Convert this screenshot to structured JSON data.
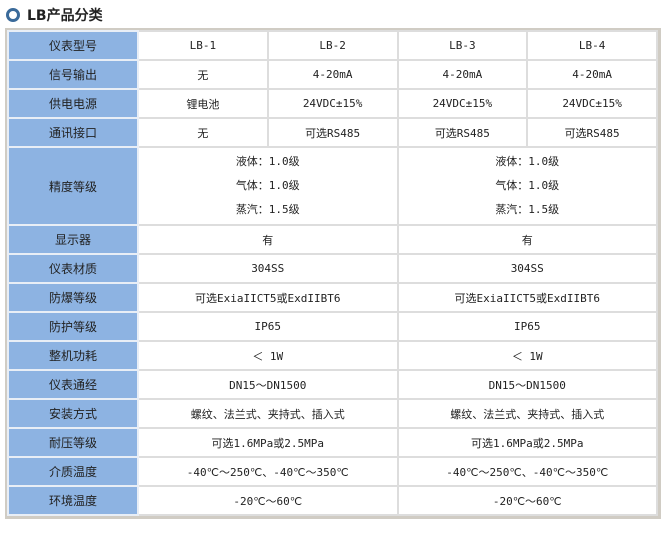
{
  "title": "LB产品分类",
  "rows": [
    {
      "label": "仪表型号",
      "cells": [
        "LB-1",
        "LB-2",
        "LB-3",
        "LB-4"
      ]
    },
    {
      "label": "信号输出",
      "cells": [
        "无",
        "4-20mA",
        "4-20mA",
        "4-20mA"
      ]
    },
    {
      "label": "供电电源",
      "cells": [
        "锂电池",
        "24VDC±15%",
        "24VDC±15%",
        "24VDC±15%"
      ]
    },
    {
      "label": "通讯接口",
      "cells": [
        "无",
        "可选RS485",
        "可选RS485",
        "可选RS485"
      ]
    },
    {
      "label": "精度等级",
      "cells": [
        [
          "液体：1.0级",
          "气体：1.0级",
          "蒸汽：1.5级"
        ],
        [
          "液体：1.0级",
          "气体：1.0级",
          "蒸汽：1.5级"
        ]
      ]
    },
    {
      "label": "显示器",
      "cells": [
        "有",
        "有"
      ]
    },
    {
      "label": "仪表材质",
      "cells": [
        "304SS",
        "304SS"
      ]
    },
    {
      "label": "防爆等级",
      "cells": [
        "可选ExiaIICT5或ExdIIBT6",
        "可选ExiaIICT5或ExdIIBT6"
      ]
    },
    {
      "label": "防护等级",
      "cells": [
        "IP65",
        "IP65"
      ]
    },
    {
      "label": "整机功耗",
      "cells": [
        "＜ 1W",
        "＜ 1W"
      ]
    },
    {
      "label": "仪表通经",
      "cells": [
        "DN15～DN1500",
        "DN15～DN1500"
      ]
    },
    {
      "label": "安装方式",
      "cells": [
        "螺纹、法兰式、夹持式、插入式",
        "螺纹、法兰式、夹持式、插入式"
      ]
    },
    {
      "label": "耐压等级",
      "cells": [
        "可选1.6MPa或2.5MPa",
        "可选1.6MPa或2.5MPa"
      ]
    },
    {
      "label": "介质温度",
      "cells": [
        "-40℃～250℃、-40℃～350℃",
        "-40℃～250℃、-40℃～350℃"
      ]
    },
    {
      "label": "环境温度",
      "cells": [
        "-20℃～60℃",
        "-20℃～60℃"
      ]
    }
  ]
}
